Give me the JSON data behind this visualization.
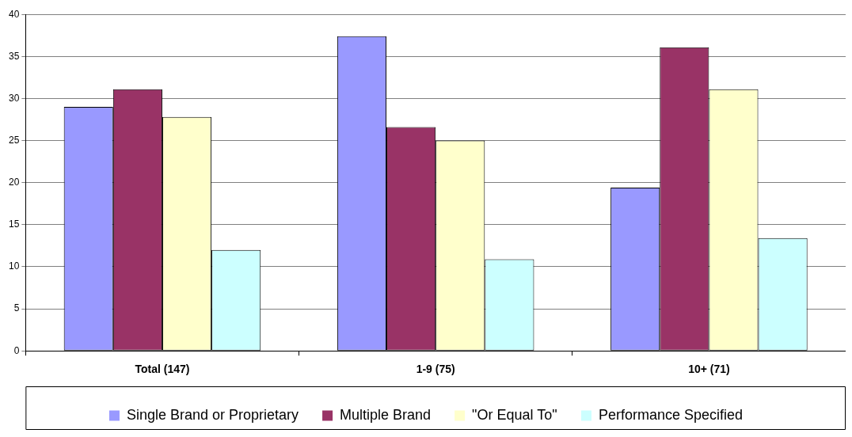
{
  "chart_data": {
    "type": "bar",
    "categories": [
      "Total (147)",
      "1-9 (75)",
      "10+ (71)"
    ],
    "series": [
      {
        "name": "Single Brand or Proprietary",
        "color": "#9999ff",
        "values": [
          29,
          37.4,
          19.4
        ]
      },
      {
        "name": "Multiple Brand",
        "color": "#993366",
        "values": [
          31.1,
          26.6,
          36.1
        ]
      },
      {
        "name": "\"Or Equal To\"",
        "color": "#ffffcc",
        "values": [
          27.8,
          25,
          31.1
        ]
      },
      {
        "name": "Performance Specified",
        "color": "#ccffff",
        "values": [
          12,
          10.9,
          13.4
        ]
      }
    ],
    "ylim": [
      0,
      40
    ],
    "yticks": [
      0,
      5,
      10,
      15,
      20,
      25,
      30,
      35,
      40
    ],
    "grid": "y",
    "legend": "bottom"
  }
}
